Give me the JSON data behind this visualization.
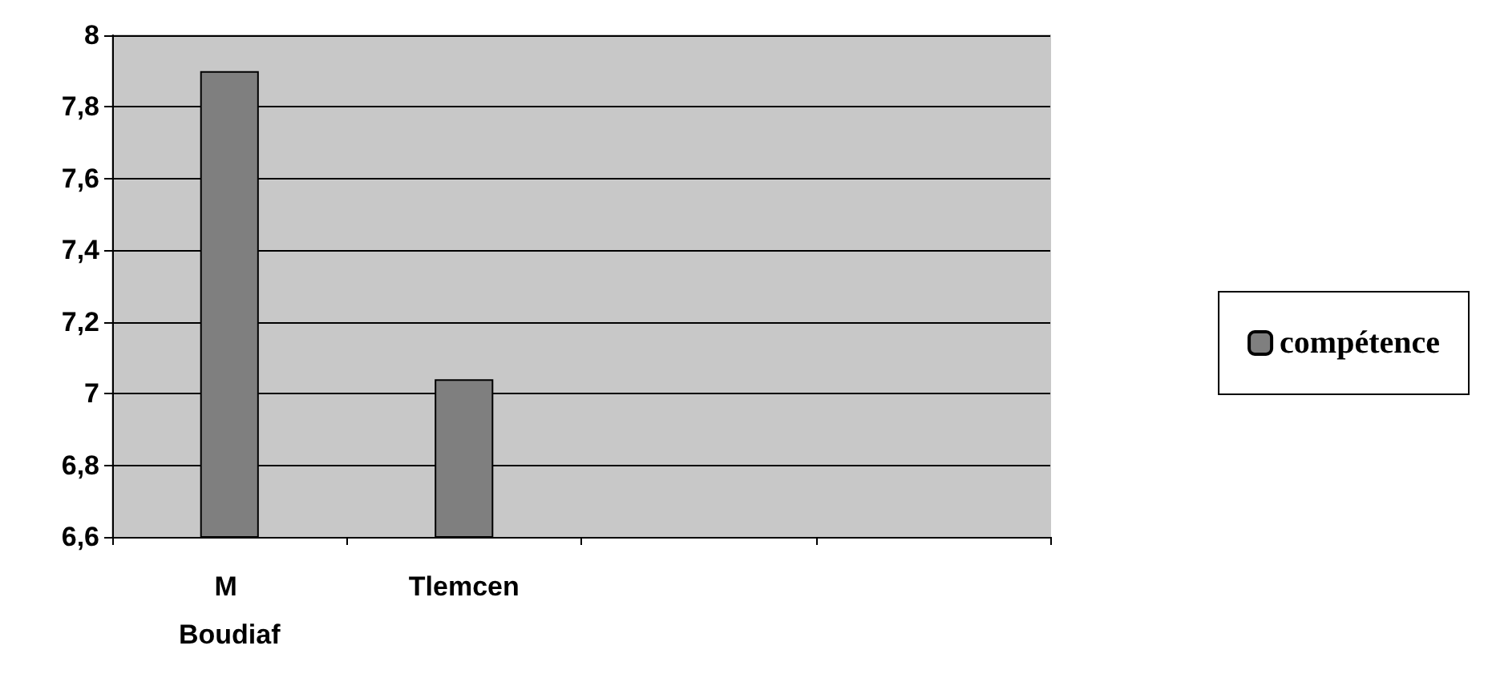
{
  "chart_data": {
    "type": "bar",
    "categories": [
      "M Boudiaf",
      "Tlemcen",
      null,
      null
    ],
    "series": [
      {
        "name": "compétence",
        "color": "#7f7f7f",
        "values": [
          7.9,
          7.04,
          null,
          null
        ]
      }
    ],
    "ylim": [
      6.6,
      8
    ],
    "yticks": [
      {
        "value": 6.6,
        "label": "6,6"
      },
      {
        "value": 6.8,
        "label": "6,8"
      },
      7,
      {
        "value": 7.2,
        "label": "7,2"
      },
      {
        "value": 7.4,
        "label": "7,4"
      },
      {
        "value": 7.6,
        "label": "7,6"
      },
      {
        "value": 7.8,
        "label": "7,8"
      },
      8
    ],
    "grid": "y",
    "legend": "right"
  }
}
